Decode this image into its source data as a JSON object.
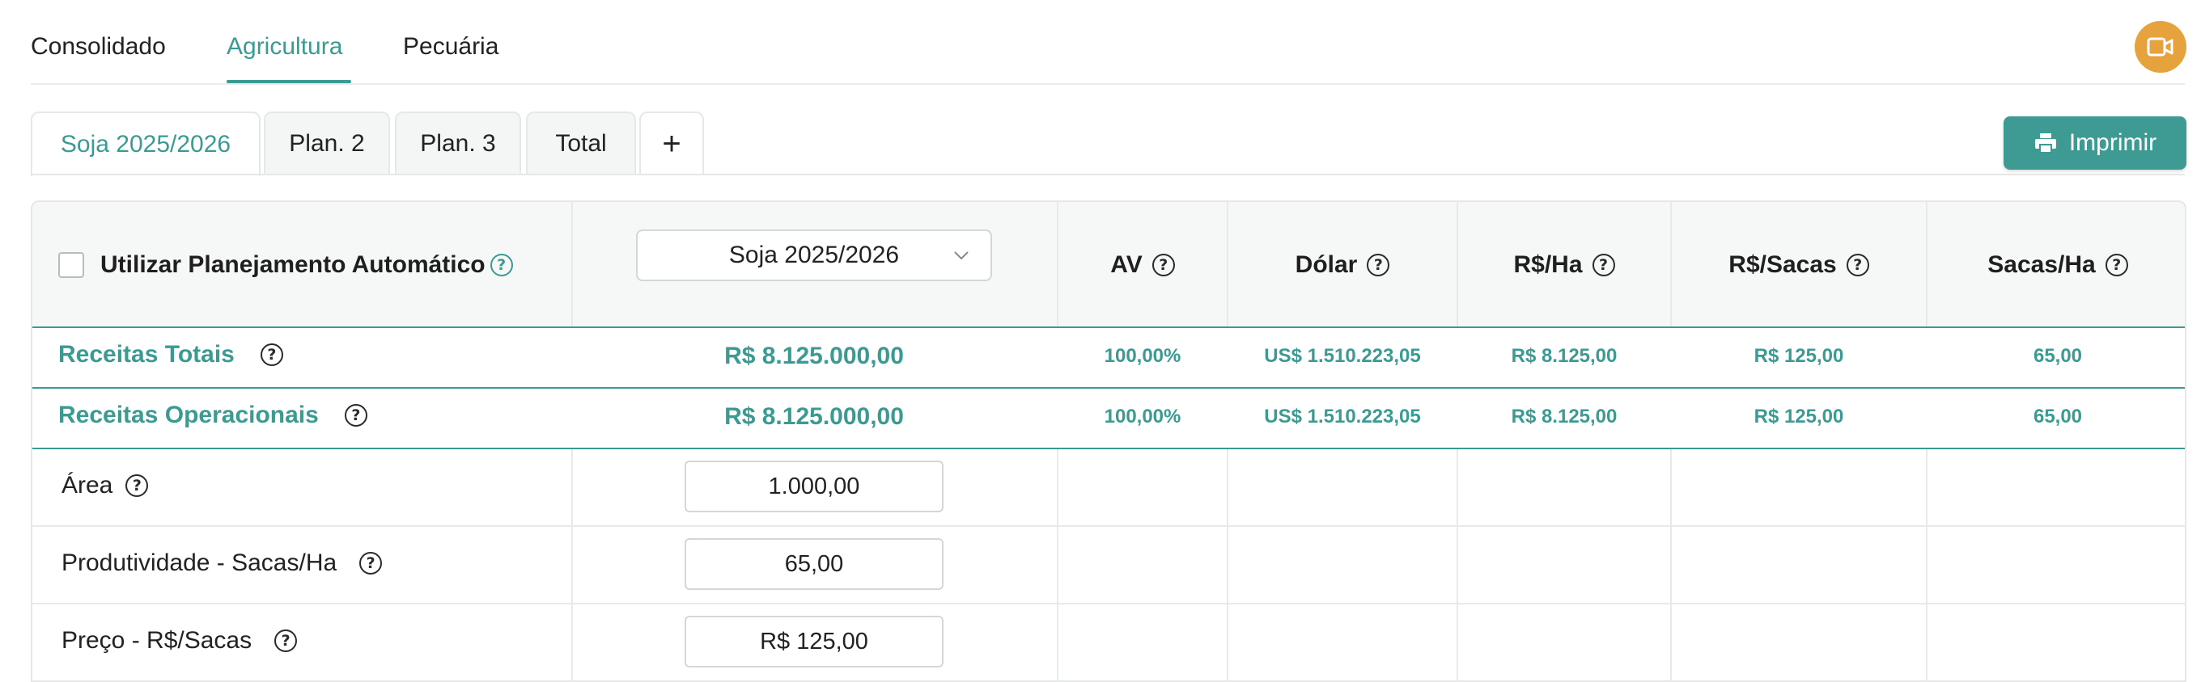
{
  "top_nav": {
    "tabs": [
      {
        "label": "Consolidado",
        "active": false
      },
      {
        "label": "Agricultura",
        "active": true
      },
      {
        "label": "Pecuária",
        "active": false
      }
    ]
  },
  "plan_tabs": {
    "tabs": [
      {
        "label": "Soja 2025/2026",
        "active": true
      },
      {
        "label": "Plan. 2",
        "active": false
      },
      {
        "label": "Plan. 3",
        "active": false
      },
      {
        "label": "Total",
        "active": false
      }
    ],
    "add_label": "+"
  },
  "toolbar": {
    "print_label": "Imprimir",
    "print_icon": "printer-icon",
    "user_icon": "video-icon"
  },
  "table": {
    "checkbox_label": "Utilizar Planejamento Automático",
    "checkbox_checked": false,
    "plan_select": "Soja 2025/2026",
    "columns": [
      "AV",
      "Dólar",
      "R$/Ha",
      "R$/Sacas",
      "Sacas/Ha"
    ],
    "summary_rows": [
      {
        "label": "Receitas Totais",
        "total": "R$ 8.125.000,00",
        "av": "100,00%",
        "dolar": "US$ 1.510.223,05",
        "rs_ha": "R$ 8.125,00",
        "rs_sacas": "R$ 125,00",
        "sacas_ha": "65,00"
      },
      {
        "label": "Receitas Operacionais",
        "total": "R$ 8.125.000,00",
        "av": "100,00%",
        "dolar": "US$ 1.510.223,05",
        "rs_ha": "R$ 8.125,00",
        "rs_sacas": "R$ 125,00",
        "sacas_ha": "65,00"
      }
    ],
    "input_rows": [
      {
        "label": "Área",
        "value": "1.000,00"
      },
      {
        "label": "Produtividade - Sacas/Ha",
        "value": "65,00"
      },
      {
        "label": "Preço - R$/Sacas",
        "value": "R$ 125,00"
      }
    ]
  },
  "colors": {
    "accent": "#3b9b92",
    "avatar": "#e6a23c",
    "print_button": "#3d9b93"
  }
}
